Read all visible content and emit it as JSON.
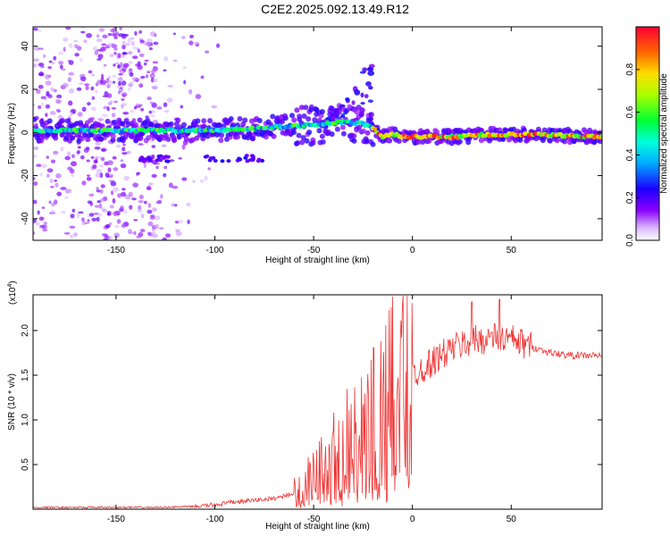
{
  "title": "C2E2.2025.092.13.49.R12",
  "chart_data": [
    {
      "type": "heatmap",
      "xlabel": "Height of straight line (km)",
      "ylabel": "Frequency (Hz)",
      "xlim": [
        -192,
        96
      ],
      "ylim": [
        -50,
        49
      ],
      "xticks": [
        -150,
        -100,
        -50,
        0,
        50
      ],
      "yticks": [
        -40,
        -20,
        0,
        20,
        40
      ],
      "ridge": {
        "description_points_x": [
          -192,
          -150,
          -120,
          -100,
          -80,
          -60,
          -45,
          -35,
          -25,
          -20,
          -15,
          -10,
          0,
          20,
          40,
          60,
          96
        ],
        "frequency": [
          1,
          1,
          1,
          1,
          2,
          3,
          4,
          5,
          4,
          2,
          -2,
          -1,
          -2,
          -2,
          -1,
          -1,
          -2
        ]
      },
      "colorbar": {
        "label": "Normalized spectral amplitude",
        "ticks": [
          "0.0",
          "0.2",
          "0.4",
          "0.6",
          "0.8"
        ],
        "tick_values": [
          0.0,
          0.2,
          0.4,
          0.6,
          0.8
        ],
        "range": [
          0,
          1
        ]
      }
    },
    {
      "type": "line",
      "series_name": "SNR",
      "xlabel": "Height of straight line (km)",
      "ylabel": "SNR (10 * v/v)",
      "scale_label": "(x10",
      "scale_exp": "4",
      "scale_close": ")",
      "xlim": [
        -192,
        96
      ],
      "ylim": [
        0,
        2.4
      ],
      "xticks": [
        -150,
        -100,
        -50,
        0,
        50
      ],
      "yticks": [
        "0.5",
        "1.0",
        "1.5",
        "2.0"
      ],
      "ytick_values": [
        0.5,
        1.0,
        1.5,
        2.0
      ],
      "color": "#ee3333",
      "envelope_x": [
        -192,
        -130,
        -110,
        -100,
        -90,
        -80,
        -70,
        -60,
        -50,
        -40,
        -30,
        -20,
        -15,
        -10,
        -5,
        0,
        10,
        20,
        30,
        40,
        50,
        60,
        70,
        80,
        96
      ],
      "envelope_y": [
        0.02,
        0.02,
        0.03,
        0.05,
        0.08,
        0.1,
        0.12,
        0.18,
        0.35,
        0.6,
        0.75,
        0.95,
        1.0,
        1.25,
        1.4,
        1.5,
        1.65,
        1.8,
        1.88,
        1.92,
        1.9,
        1.82,
        1.75,
        1.72,
        1.72
      ],
      "peaks": [
        {
          "x": -10,
          "y": 2.38
        },
        {
          "x": 30,
          "y": 2.32
        },
        {
          "x": 44,
          "y": 2.35
        }
      ]
    }
  ],
  "colors": {
    "axis": "#000000",
    "line": "#ee3333"
  }
}
